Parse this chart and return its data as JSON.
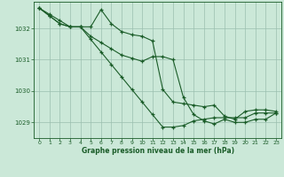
{
  "background_color": "#cbe8d8",
  "plot_bg_color": "#cbe8d8",
  "grid_color": "#9bbfaf",
  "line_color": "#1a5c28",
  "xlabel": "Graphe pression niveau de la mer (hPa)",
  "xlim": [
    -0.5,
    23.5
  ],
  "ylim": [
    1028.5,
    1032.85
  ],
  "yticks": [
    1029,
    1030,
    1031,
    1032
  ],
  "xticks": [
    0,
    1,
    2,
    3,
    4,
    5,
    6,
    7,
    8,
    9,
    10,
    11,
    12,
    13,
    14,
    15,
    16,
    17,
    18,
    19,
    20,
    21,
    22,
    23
  ],
  "series": [
    [
      1032.65,
      1032.45,
      1032.25,
      1032.05,
      1032.05,
      1032.05,
      1032.6,
      1032.15,
      1031.9,
      1031.8,
      1031.75,
      1031.6,
      1030.05,
      1029.65,
      1029.6,
      1029.55,
      1029.5,
      1029.55,
      1029.2,
      1029.1,
      1029.35,
      1029.4,
      1029.4,
      1029.35
    ],
    [
      1032.65,
      1032.4,
      1032.15,
      1032.05,
      1032.05,
      1031.65,
      1031.25,
      1030.85,
      1030.45,
      1030.05,
      1029.65,
      1029.25,
      1028.85,
      1028.85,
      1028.9,
      1029.05,
      1029.1,
      1029.15,
      1029.15,
      1029.15,
      1029.15,
      1029.3,
      1029.3,
      1029.3
    ],
    [
      1032.65,
      1032.4,
      1032.15,
      1032.05,
      1032.05,
      1031.75,
      1031.55,
      1031.35,
      1031.15,
      1031.05,
      1030.95,
      1031.1,
      1031.1,
      1031.0,
      1029.8,
      1029.25,
      1029.05,
      1028.95,
      1029.1,
      1029.0,
      1029.0,
      1029.1,
      1029.1,
      1029.3
    ]
  ]
}
